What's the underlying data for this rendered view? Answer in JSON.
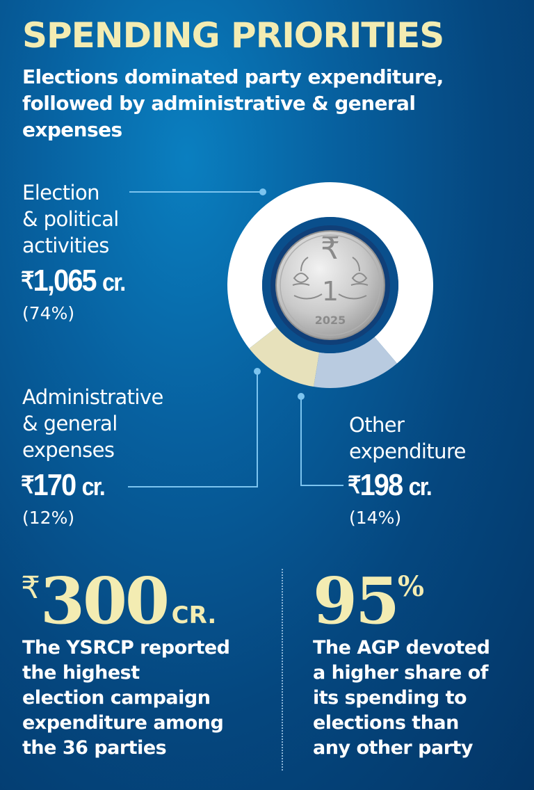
{
  "header": {
    "title": "SPENDING PRIORITIES",
    "subtitle": "Elections dominated party expenditure, followed by administrative & general expenses"
  },
  "chart_data": {
    "type": "pie",
    "variant": "donut",
    "title": "SPENDING PRIORITIES",
    "subtitle": "Elections dominated party expenditure, followed by administrative & general expenses",
    "unit": "cr.",
    "currency": "₹",
    "slices": [
      {
        "label_lines": [
          "Election",
          "& political",
          "activities"
        ],
        "amount": "1,065",
        "value": 1065,
        "percent": "(74%)",
        "color": "#ffffff"
      },
      {
        "label_lines": [
          "Administrative",
          "& general",
          "expenses"
        ],
        "amount": "170",
        "value": 170,
        "percent": "(12%)",
        "color": "#e7e1bb"
      },
      {
        "label_lines": [
          "Other",
          "expenditure"
        ],
        "amount": "198",
        "value": 198,
        "percent": "(14%)",
        "color": "#b9cbe0"
      }
    ]
  },
  "coin": {
    "symbol": "₹",
    "denomination": "1",
    "year": "2025",
    "icon": "rupee-coin-icon"
  },
  "facts": [
    {
      "big_prefix": "₹",
      "big_value": "300",
      "big_suffix": "CR.",
      "description_lines": [
        "The YSRCP reported",
        "the highest",
        "election campaign",
        "expenditure among",
        "the 36 parties"
      ]
    },
    {
      "big_value": "95",
      "big_suffix": "%",
      "description_lines": [
        "The AGP devoted",
        "a higher share of",
        "its spending to",
        "elections than",
        "any other party"
      ]
    }
  ],
  "colors": {
    "accent": "#f3ecb2",
    "background_dark": "#033566",
    "background_light": "#0a7fc0",
    "ring_inner": "#0a4f8c",
    "leader_line": "#7cc4ef"
  }
}
